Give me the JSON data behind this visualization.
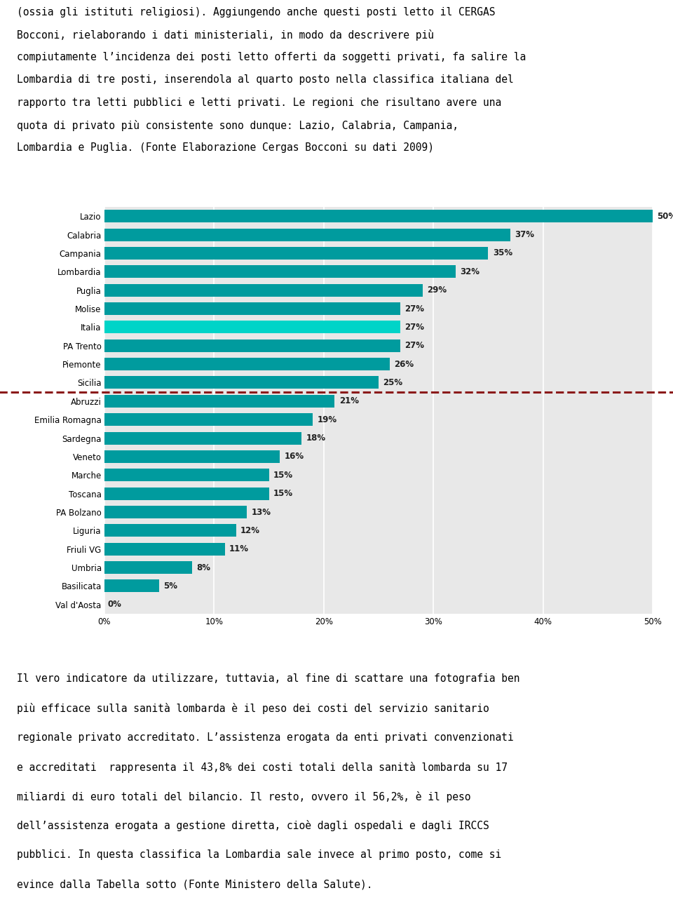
{
  "categories": [
    "Lazio",
    "Calabria",
    "Campania",
    "Lombardia",
    "Puglia",
    "Molise",
    "Italia",
    "PA Trento",
    "Piemonte",
    "Sicilia",
    "Abruzzi",
    "Emilia Romagna",
    "Sardegna",
    "Veneto",
    "Marche",
    "Toscana",
    "PA Bolzano",
    "Liguria",
    "Friuli VG",
    "Umbria",
    "Basilicata",
    "Val d'Aosta"
  ],
  "values": [
    50,
    37,
    35,
    32,
    29,
    27,
    27,
    27,
    26,
    25,
    21,
    19,
    18,
    16,
    15,
    15,
    13,
    12,
    11,
    8,
    5,
    0
  ],
  "bar_color_default": "#009B9E",
  "bar_color_italia": "#00D4C8",
  "dashed_line_color": "#8B1A1A",
  "plot_bg_color": "#E8E8E8",
  "text_color": "#222222",
  "bar_label_fontsize": 8.5,
  "tick_label_fontsize": 8.5,
  "axis_label_fontsize": 8.5,
  "text_block_top_lines": [
    "(ossia gli istituti religiosi). Aggiungendo anche questi posti letto il CERGAS",
    "Bocconi, rielaborando i dati ministeriali, in modo da descrivere più",
    "compiutamente l’incidenza dei posti letto offerti da soggetti privati, fa salire la",
    "Lombardia di tre posti, inserendola al quarto posto nella classifica italiana del",
    "rapporto tra letti pubblici e letti privati. Le regioni che risultano avere una",
    "quota di privato più consistente sono dunque: Lazio, Calabria, Campania,",
    "Lombardia e Puglia. (Fonte Elaborazione Cergas Bocconi su dati 2009)"
  ],
  "text_block_bottom_lines": [
    "Il vero indicatore da utilizzare, tuttavia, al fine di scattare una fotografia ben",
    "più efficace sulla sanità lombarda è il peso dei costi del servizio sanitario",
    "regionale privato accreditato. L’assistenza erogata da enti privati convenzionati",
    "e accreditati  rappresenta il 43,8% dei costi totali della sanità lombarda su 17",
    "miliardi di euro totali del bilancio. Il resto, ovvero il 56,2%, è il peso",
    "dell’assistenza erogata a gestione diretta, cioè dagli ospedali e dagli IRCCS",
    "pubblici. In questa classifica la Lombardia sale invece al primo posto, come si",
    "evince dalla Tabella sotto (Fonte Ministero della Salute)."
  ],
  "xlim": [
    0,
    50
  ],
  "xticks": [
    0,
    10,
    20,
    30,
    40,
    50
  ],
  "xtick_labels": [
    "0%",
    "10%",
    "20%",
    "30%",
    "40%",
    "50%"
  ]
}
